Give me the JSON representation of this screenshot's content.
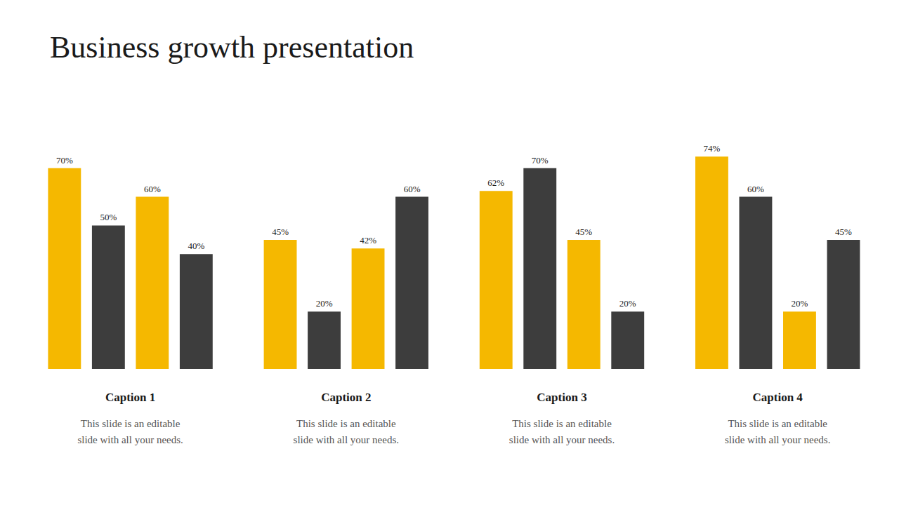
{
  "title": "Business growth presentation",
  "chart_data": [
    {
      "type": "bar",
      "title": "Caption 1",
      "subtitle": "This slide is an editable\nslide with all your needs.",
      "categories": [
        null,
        null,
        null,
        null
      ],
      "values": [
        70,
        50,
        60,
        40
      ],
      "value_labels": [
        "70%",
        "50%",
        "60%",
        "40%"
      ],
      "colors": [
        "#F5B800",
        "#3d3d3d",
        "#F5B800",
        "#3d3d3d"
      ],
      "ylim": [
        0,
        88
      ],
      "grid": false,
      "data_labels": true,
      "tick_labels": false
    },
    {
      "type": "bar",
      "title": "Caption 2",
      "subtitle": "This slide is an editable\nslide with all your needs.",
      "categories": [
        null,
        null,
        null,
        null
      ],
      "values": [
        45,
        20,
        42,
        60
      ],
      "value_labels": [
        "45%",
        "20%",
        "42%",
        "60%"
      ],
      "colors": [
        "#F5B800",
        "#3d3d3d",
        "#F5B800",
        "#3d3d3d"
      ],
      "ylim": [
        0,
        88
      ],
      "grid": false,
      "data_labels": true,
      "tick_labels": false
    },
    {
      "type": "bar",
      "title": "Caption 3",
      "subtitle": "This slide is an editable\nslide with all your needs.",
      "categories": [
        null,
        null,
        null,
        null
      ],
      "values": [
        62,
        70,
        45,
        20
      ],
      "value_labels": [
        "62%",
        "70%",
        "45%",
        "20%"
      ],
      "colors": [
        "#F5B800",
        "#3d3d3d",
        "#F5B800",
        "#3d3d3d"
      ],
      "ylim": [
        0,
        88
      ],
      "grid": false,
      "data_labels": true,
      "tick_labels": false
    },
    {
      "type": "bar",
      "title": "Caption 4",
      "subtitle": "This slide is an editable\nslide with all your needs.",
      "categories": [
        null,
        null,
        null,
        null
      ],
      "values": [
        74,
        60,
        20,
        45
      ],
      "value_labels": [
        "74%",
        "60%",
        "20%",
        "45%"
      ],
      "colors": [
        "#F5B800",
        "#3d3d3d",
        "#F5B800",
        "#3d3d3d"
      ],
      "ylim": [
        0,
        88
      ],
      "grid": false,
      "data_labels": true,
      "tick_labels": false
    }
  ]
}
